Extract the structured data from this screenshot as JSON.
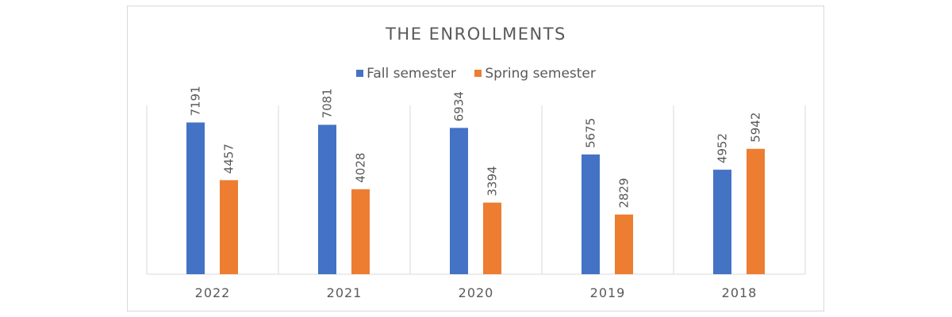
{
  "chart_data": {
    "type": "bar",
    "title": "THE ENROLLMENTS",
    "categories": [
      "2022",
      "2021",
      "2020",
      "2019",
      "2018"
    ],
    "series": [
      {
        "name": "Fall semester",
        "color": "#4472c4",
        "values": [
          7191,
          7081,
          6934,
          5675,
          4952
        ]
      },
      {
        "name": "Spring semester",
        "color": "#ed7d31",
        "values": [
          4457,
          4028,
          3394,
          2829,
          5942
        ]
      }
    ],
    "xlabel": "",
    "ylabel": "",
    "ylim": [
      0,
      8000
    ],
    "grid": "vertical category separators",
    "legend_position": "top",
    "data_labels": "rotated 90°, above bars"
  }
}
